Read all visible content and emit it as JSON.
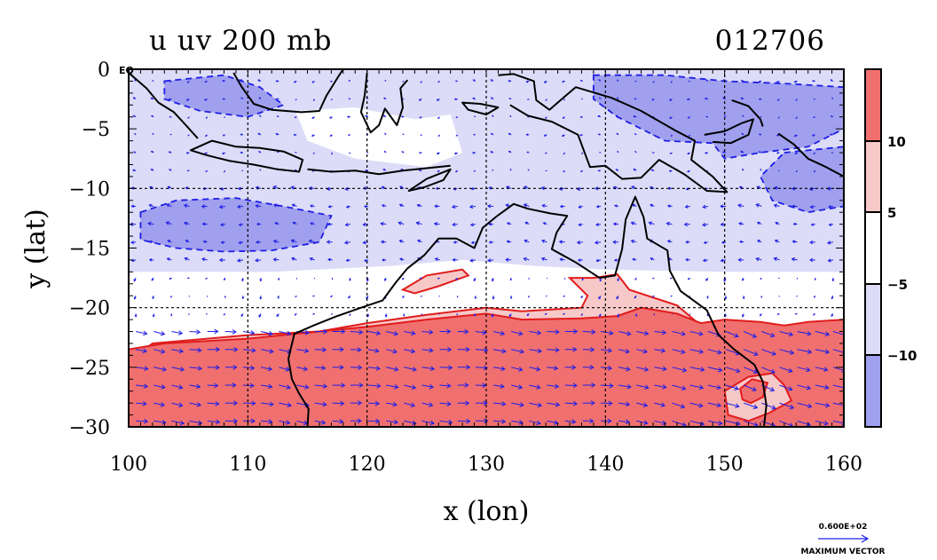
{
  "title": {
    "left": "u uv 200 mb",
    "right": "012706"
  },
  "axes": {
    "xlabel": "x (lon)",
    "ylabel": "y (lat)",
    "xticks": [
      "100",
      "110",
      "120",
      "130",
      "140",
      "150",
      "160"
    ],
    "yticks": [
      "0",
      "−5",
      "−10",
      "−15",
      "−20",
      "−25",
      "−30"
    ],
    "eq_label": "EQ"
  },
  "colorbar": {
    "labels": [
      "10",
      "5",
      "−5",
      "−10"
    ],
    "colors": [
      "#f07070",
      "#f7c8c8",
      "#ffffff",
      "#dcdcf8",
      "#a0a0ee"
    ]
  },
  "vector_legend": {
    "value": "0.600E+02",
    "label": "MAXIMUM VECTOR"
  },
  "chart_data": {
    "type": "contour-vector-map",
    "variable": "u",
    "level": "200 mb",
    "xlim": [
      100,
      160
    ],
    "ylim": [
      -30,
      0
    ],
    "grid": true,
    "contour_levels": [
      -10,
      -5,
      5,
      10
    ],
    "colors": {
      "strong_negative": "#a0a0ee",
      "weak_negative": "#dcdcf8",
      "neutral": "#ffffff",
      "weak_positive": "#f7c8c8",
      "strong_positive": "#f07070",
      "vectors": "#1e1ee6",
      "contour_positive": "#e11c1c",
      "contour_negative": "#1e1ee6",
      "coast": "#000000"
    },
    "regions": [
      {
        "level": "strong_negative",
        "polygon": [
          [
            103,
            -1
          ],
          [
            108,
            -0.5
          ],
          [
            111,
            -1.5
          ],
          [
            113,
            -3
          ],
          [
            110,
            -4
          ],
          [
            106,
            -3.5
          ],
          [
            103,
            -2.5
          ]
        ]
      },
      {
        "level": "strong_negative",
        "polygon": [
          [
            101,
            -12
          ],
          [
            104,
            -11
          ],
          [
            109,
            -10.8
          ],
          [
            113,
            -11.5
          ],
          [
            117,
            -12.3
          ],
          [
            116,
            -14.5
          ],
          [
            112,
            -15.2
          ],
          [
            108,
            -15.3
          ],
          [
            104,
            -15
          ],
          [
            101,
            -14.3
          ]
        ]
      },
      {
        "level": "strong_negative",
        "polygon": [
          [
            139,
            -0.5
          ],
          [
            145,
            -0.5
          ],
          [
            150,
            -1
          ],
          [
            155,
            -1.2
          ],
          [
            160,
            -1.5
          ],
          [
            160,
            -5
          ],
          [
            157,
            -6.5
          ],
          [
            153,
            -7
          ],
          [
            150,
            -7.5
          ],
          [
            149,
            -6.2
          ],
          [
            145,
            -6
          ],
          [
            141,
            -4
          ],
          [
            139,
            -2.5
          ]
        ]
      },
      {
        "level": "strong_negative",
        "polygon": [
          [
            155,
            -7
          ],
          [
            160,
            -6.5
          ],
          [
            160,
            -11.5
          ],
          [
            157,
            -12
          ],
          [
            154,
            -11
          ],
          [
            153,
            -9
          ]
        ]
      },
      {
        "level": "weak_positive",
        "polygon": [
          [
            100,
            -24.5
          ],
          [
            102,
            -23
          ],
          [
            110,
            -22.3
          ],
          [
            116,
            -22
          ],
          [
            120,
            -21.3
          ],
          [
            125,
            -20.6
          ],
          [
            130,
            -20
          ],
          [
            133,
            -20.3
          ],
          [
            138,
            -20
          ],
          [
            138.5,
            -19
          ],
          [
            137,
            -17.5
          ],
          [
            139,
            -17.5
          ],
          [
            141,
            -17.2
          ],
          [
            142,
            -18.5
          ],
          [
            146,
            -19.8
          ],
          [
            148,
            -21.5
          ],
          [
            153,
            -22.8
          ],
          [
            157,
            -21.5
          ],
          [
            160,
            -21.3
          ],
          [
            160,
            -30
          ],
          [
            100,
            -30
          ]
        ]
      },
      {
        "level": "weak_positive",
        "polygon": [
          [
            123,
            -18.5
          ],
          [
            125,
            -17.3
          ],
          [
            128,
            -16.8
          ],
          [
            128.5,
            -17.3
          ],
          [
            126,
            -18.2
          ],
          [
            124,
            -18.8
          ]
        ]
      },
      {
        "level": "strong_positive",
        "polygon": [
          [
            100,
            -23.5
          ],
          [
            103,
            -23
          ],
          [
            110,
            -22.6
          ],
          [
            116,
            -22
          ],
          [
            120,
            -21.6
          ],
          [
            125,
            -21
          ],
          [
            130,
            -20.5
          ],
          [
            133,
            -21
          ],
          [
            138,
            -20.9
          ],
          [
            141,
            -20.7
          ],
          [
            143,
            -20
          ],
          [
            146,
            -20.5
          ],
          [
            148,
            -21.3
          ],
          [
            150,
            -21
          ],
          [
            153,
            -21.2
          ],
          [
            155,
            -21.5
          ],
          [
            157,
            -21.2
          ],
          [
            160,
            -21
          ],
          [
            160,
            -30
          ],
          [
            100,
            -30
          ]
        ]
      },
      {
        "level": "weak_positive",
        "polygon": [
          [
            150,
            -27
          ],
          [
            152,
            -25.8
          ],
          [
            154,
            -25.5
          ],
          [
            155,
            -26.5
          ],
          [
            155.6,
            -27.8
          ],
          [
            153.8,
            -28.8
          ],
          [
            152,
            -29.5
          ],
          [
            150.3,
            -29
          ]
        ]
      },
      {
        "level": "strong_positive",
        "polygon": [
          [
            151.3,
            -26.8
          ],
          [
            152.3,
            -26
          ],
          [
            153.6,
            -26.3
          ],
          [
            153.2,
            -27.5
          ],
          [
            152.2,
            -28
          ],
          [
            151.5,
            -27.7
          ]
        ]
      }
    ],
    "coastlines": [
      {
        "name": "sumatra",
        "closed": false,
        "points": [
          [
            100,
            -0.3
          ],
          [
            101.5,
            -1.6
          ],
          [
            102.5,
            -2.8
          ],
          [
            103.8,
            -3.6
          ],
          [
            104.9,
            -4.8
          ],
          [
            105.8,
            -5.8
          ]
        ]
      },
      {
        "name": "java",
        "closed": true,
        "points": [
          [
            105.2,
            -6.8
          ],
          [
            107,
            -6
          ],
          [
            109,
            -6.5
          ],
          [
            111,
            -6.6
          ],
          [
            113,
            -6.9
          ],
          [
            114.6,
            -7.6
          ],
          [
            114.3,
            -8.6
          ],
          [
            112.5,
            -8.4
          ],
          [
            110.5,
            -8
          ],
          [
            108.5,
            -7.7
          ],
          [
            106.5,
            -7.2
          ]
        ]
      },
      {
        "name": "lesser-sunda",
        "closed": false,
        "points": [
          [
            115,
            -8.4
          ],
          [
            117,
            -8.6
          ],
          [
            119,
            -8.5
          ],
          [
            121,
            -8.8
          ],
          [
            123,
            -8.5
          ],
          [
            125,
            -8.3
          ],
          [
            127,
            -8.1
          ]
        ]
      },
      {
        "name": "timor",
        "closed": true,
        "points": [
          [
            123.5,
            -10.2
          ],
          [
            125,
            -9.2
          ],
          [
            127,
            -8.4
          ],
          [
            126.4,
            -9.3
          ],
          [
            124.8,
            -9.9
          ]
        ]
      },
      {
        "name": "borneo",
        "closed": false,
        "points": [
          [
            108.8,
            -0.3
          ],
          [
            109.5,
            -1.5
          ],
          [
            110.5,
            -2.9
          ],
          [
            112,
            -3.4
          ],
          [
            114.5,
            -3.6
          ],
          [
            116,
            -3.5
          ],
          [
            116.6,
            -2.2
          ],
          [
            117.6,
            -0.6
          ],
          [
            118,
            0
          ]
        ]
      },
      {
        "name": "sulawesi",
        "closed": false,
        "points": [
          [
            120,
            -0.3
          ],
          [
            119.8,
            -2.2
          ],
          [
            119.5,
            -3.6
          ],
          [
            120.3,
            -5.3
          ],
          [
            121,
            -4.7
          ],
          [
            121.5,
            -3.3
          ],
          [
            122.5,
            -4.7
          ],
          [
            123,
            -3.2
          ],
          [
            122.8,
            -1.6
          ],
          [
            123.4,
            -0.9
          ]
        ]
      },
      {
        "name": "seram",
        "closed": true,
        "points": [
          [
            128,
            -2.8
          ],
          [
            129.5,
            -2.9
          ],
          [
            131,
            -3.2
          ],
          [
            130,
            -3.8
          ],
          [
            128.5,
            -3.4
          ]
        ]
      },
      {
        "name": "new-guinea",
        "closed": false,
        "points": [
          [
            131,
            -0.5
          ],
          [
            132.3,
            -0.4
          ],
          [
            134,
            -1
          ],
          [
            134.2,
            -2.6
          ],
          [
            135.3,
            -3.4
          ],
          [
            137.5,
            -1.5
          ],
          [
            140.5,
            -2.4
          ],
          [
            143,
            -3.5
          ],
          [
            145.8,
            -5.1
          ],
          [
            147.5,
            -6
          ],
          [
            147.2,
            -7.6
          ],
          [
            149,
            -9
          ],
          [
            150.2,
            -10.3
          ],
          [
            148.5,
            -10.2
          ],
          [
            146.6,
            -8.8
          ],
          [
            144.5,
            -7.6
          ],
          [
            143,
            -9.1
          ],
          [
            141.4,
            -9.2
          ],
          [
            140,
            -8.1
          ],
          [
            138.7,
            -8.2
          ],
          [
            137.7,
            -5.5
          ],
          [
            135.5,
            -4.4
          ],
          [
            133.5,
            -3.9
          ],
          [
            132,
            -3
          ]
        ]
      },
      {
        "name": "new-britain",
        "closed": false,
        "points": [
          [
            148.3,
            -5.5
          ],
          [
            150,
            -5.2
          ],
          [
            151.5,
            -4.5
          ],
          [
            152.4,
            -4.2
          ],
          [
            152,
            -5.5
          ],
          [
            150.5,
            -6.2
          ],
          [
            149,
            -6.1
          ]
        ]
      },
      {
        "name": "new-ireland",
        "closed": false,
        "points": [
          [
            150.6,
            -2.6
          ],
          [
            152,
            -3.1
          ],
          [
            153,
            -4.2
          ],
          [
            153.2,
            -4.8
          ]
        ]
      },
      {
        "name": "solomons",
        "closed": false,
        "points": [
          [
            154.5,
            -5.4
          ],
          [
            155.8,
            -6.3
          ],
          [
            157,
            -7.5
          ],
          [
            158.5,
            -8.2
          ],
          [
            160,
            -9
          ]
        ]
      },
      {
        "name": "australia",
        "closed": false,
        "points": [
          [
            115,
            -30
          ],
          [
            115.1,
            -28.5
          ],
          [
            114.3,
            -27.2
          ],
          [
            113.7,
            -26
          ],
          [
            113.4,
            -24.3
          ],
          [
            113.9,
            -22.2
          ],
          [
            115.5,
            -21.5
          ],
          [
            117.5,
            -20.7
          ],
          [
            119.5,
            -20
          ],
          [
            121.3,
            -19.4
          ],
          [
            122.4,
            -17.9
          ],
          [
            123.4,
            -16.7
          ],
          [
            124.8,
            -15.6
          ],
          [
            126,
            -14.2
          ],
          [
            127.5,
            -14.2
          ],
          [
            129,
            -15
          ],
          [
            129.7,
            -13.3
          ],
          [
            130.8,
            -12.4
          ],
          [
            132.3,
            -11.3
          ],
          [
            133.5,
            -11.7
          ],
          [
            135.4,
            -12.1
          ],
          [
            136.8,
            -12.3
          ],
          [
            135.9,
            -13.7
          ],
          [
            135.5,
            -15.1
          ],
          [
            137.5,
            -16.2
          ],
          [
            139.5,
            -17.5
          ],
          [
            140.8,
            -17.3
          ],
          [
            141.4,
            -15.1
          ],
          [
            141.7,
            -12.6
          ],
          [
            142.5,
            -10.7
          ],
          [
            143.2,
            -12.4
          ],
          [
            143.5,
            -14.2
          ],
          [
            145.2,
            -15.2
          ],
          [
            145.4,
            -16.9
          ],
          [
            146.3,
            -18.6
          ],
          [
            148.5,
            -20.2
          ],
          [
            149.5,
            -22.3
          ],
          [
            150.8,
            -23.5
          ],
          [
            152.5,
            -24.8
          ],
          [
            153.2,
            -26.2
          ],
          [
            153.5,
            -28.2
          ],
          [
            153.3,
            -30
          ]
        ]
      }
    ],
    "vector_field": {
      "reference_vector": 60,
      "spacing_deg": 1.5,
      "regimes": [
        {
          "lat_range": [
            -30,
            -20.5
          ],
          "u": 25,
          "v": -3
        },
        {
          "lat_range": [
            -20.5,
            -16
          ],
          "u": -2,
          "v": -4
        },
        {
          "lat_range": [
            -16,
            -9
          ],
          "u": -10,
          "v": 1
        },
        {
          "lat_range": [
            -9,
            0
          ],
          "u": -4,
          "v": 0
        }
      ]
    }
  }
}
